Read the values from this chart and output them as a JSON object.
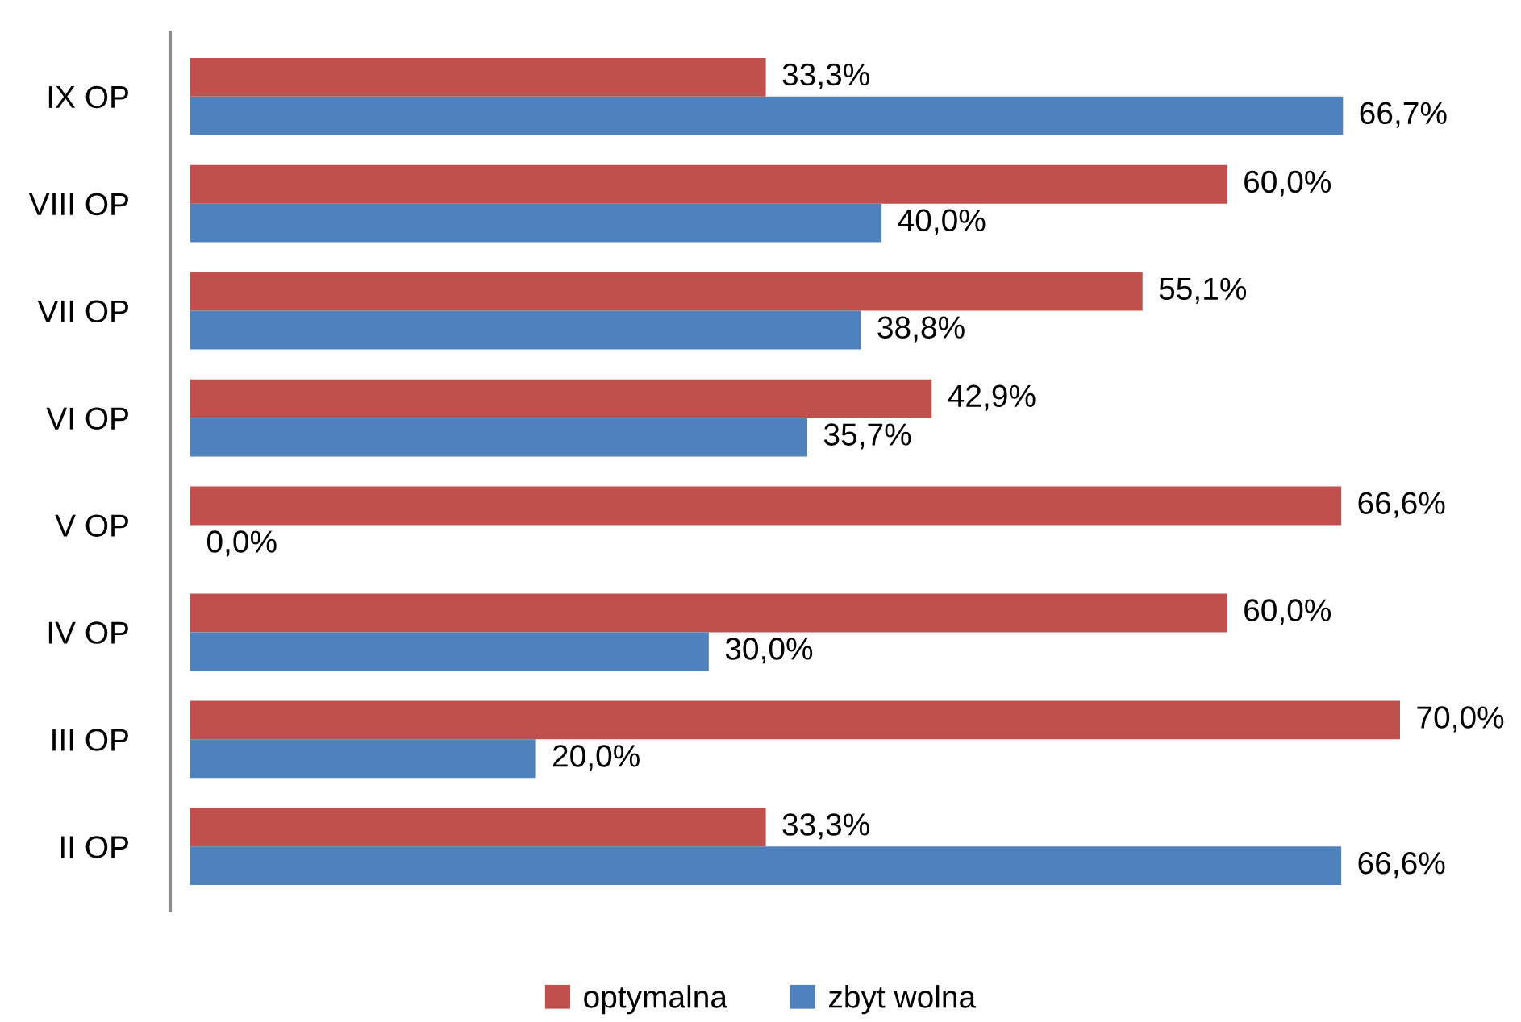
{
  "chart_data": {
    "type": "bar",
    "orientation": "horizontal",
    "categories": [
      "IX OP",
      "VIII OP",
      "VII OP",
      "VI OP",
      "V OP",
      "IV OP",
      "III OP",
      "II OP"
    ],
    "series": [
      {
        "name": "optymalna",
        "color": "#c0504d",
        "values": [
          33.3,
          60.0,
          55.1,
          42.9,
          66.6,
          60.0,
          70.0,
          33.3
        ],
        "value_labels": [
          "33,3%",
          "60,0%",
          "55,1%",
          "42,9%",
          "66,6%",
          "60,0%",
          "70,0%",
          "33,3%"
        ]
      },
      {
        "name": "zbyt wolna",
        "color": "#4f81bd",
        "values": [
          66.7,
          40.0,
          38.8,
          35.7,
          0.0,
          30.0,
          20.0,
          66.6
        ],
        "value_labels": [
          "66,7%",
          "40,0%",
          "38,8%",
          "35,7%",
          "0,0%",
          "30,0%",
          "20,0%",
          "66,6%"
        ]
      }
    ],
    "legend": "bottom"
  }
}
